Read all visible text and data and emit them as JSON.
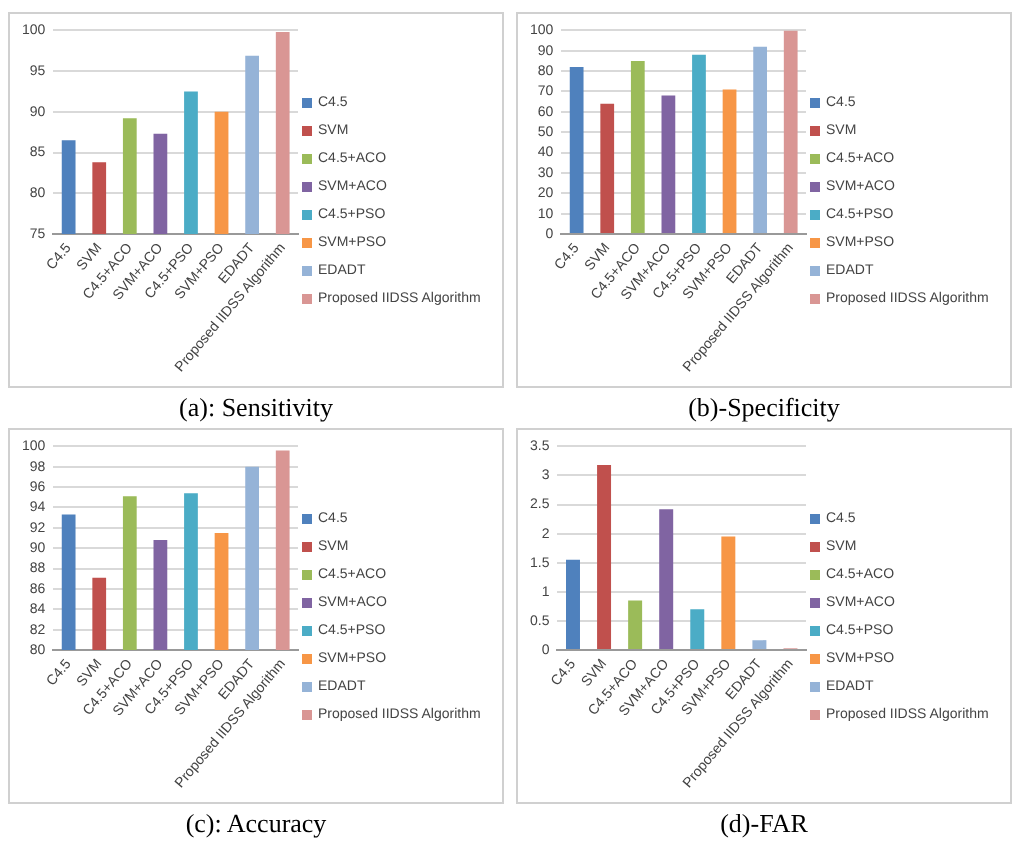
{
  "chart_data": [
    {
      "type": "bar",
      "title": "(a): Sensitivity",
      "categories": [
        "C4.5",
        "SVM",
        "C4.5+ACO",
        "SVM+ACO",
        "C4.5+PSO",
        "SVM+PSO",
        "EDADT",
        "Proposed IIDSS Algorithm"
      ],
      "series": [
        {
          "name": "C4.5",
          "color": "#4f81bd",
          "values": [
            86.5,
            null,
            null,
            null,
            null,
            null,
            null,
            null
          ]
        },
        {
          "name": "SVM",
          "color": "#c0504d",
          "values": [
            null,
            83.8,
            null,
            null,
            null,
            null,
            null,
            null
          ]
        },
        {
          "name": "C4.5+ACO",
          "color": "#9bbb59",
          "values": [
            null,
            null,
            89.2,
            null,
            null,
            null,
            null,
            null
          ]
        },
        {
          "name": "SVM+ACO",
          "color": "#8064a2",
          "values": [
            null,
            null,
            null,
            87.3,
            null,
            null,
            null,
            null
          ]
        },
        {
          "name": "C4.5+PSO",
          "color": "#4bacc6",
          "values": [
            null,
            null,
            null,
            null,
            92.5,
            null,
            null,
            null
          ]
        },
        {
          "name": "SVM+PSO",
          "color": "#f79646",
          "values": [
            null,
            null,
            null,
            null,
            null,
            90,
            null,
            null
          ]
        },
        {
          "name": "EDADT",
          "color": "#95b3d7",
          "values": [
            null,
            null,
            null,
            null,
            null,
            null,
            96.9,
            null
          ]
        },
        {
          "name": "Proposed IIDSS Algorithm",
          "color": "#d99694",
          "values": [
            null,
            null,
            null,
            null,
            null,
            null,
            null,
            99.8
          ]
        }
      ],
      "ylim": [
        75,
        100
      ],
      "yticks": [
        75,
        80,
        85,
        90,
        95,
        100
      ],
      "grid": "y",
      "legend": "right"
    },
    {
      "type": "bar",
      "title": "(b)-Specificity",
      "categories": [
        "C4.5",
        "SVM",
        "C4.5+ACO",
        "SVM+ACO",
        "C4.5+PSO",
        "SVM+PSO",
        "EDADT",
        "Proposed IIDSS Algorithm"
      ],
      "series": [
        {
          "name": "C4.5",
          "color": "#4f81bd",
          "values": [
            82,
            null,
            null,
            null,
            null,
            null,
            null,
            null
          ]
        },
        {
          "name": "SVM",
          "color": "#c0504d",
          "values": [
            null,
            64,
            null,
            null,
            null,
            null,
            null,
            null
          ]
        },
        {
          "name": "C4.5+ACO",
          "color": "#9bbb59",
          "values": [
            null,
            null,
            85,
            null,
            null,
            null,
            null,
            null
          ]
        },
        {
          "name": "SVM+ACO",
          "color": "#8064a2",
          "values": [
            null,
            null,
            null,
            68,
            null,
            null,
            null,
            null
          ]
        },
        {
          "name": "C4.5+PSO",
          "color": "#4bacc6",
          "values": [
            null,
            null,
            null,
            null,
            88,
            null,
            null,
            null
          ]
        },
        {
          "name": "SVM+PSO",
          "color": "#f79646",
          "values": [
            null,
            null,
            null,
            null,
            null,
            71,
            null,
            null
          ]
        },
        {
          "name": "EDADT",
          "color": "#95b3d7",
          "values": [
            null,
            null,
            null,
            null,
            null,
            null,
            92,
            null
          ]
        },
        {
          "name": "Proposed IIDSS Algorithm",
          "color": "#d99694",
          "values": [
            null,
            null,
            null,
            null,
            null,
            null,
            null,
            100
          ]
        }
      ],
      "ylim": [
        0,
        100
      ],
      "yticks": [
        0,
        10,
        20,
        30,
        40,
        50,
        60,
        70,
        80,
        90,
        100
      ],
      "grid": "y",
      "legend": "right"
    },
    {
      "type": "bar",
      "title": "(c): Accuracy",
      "categories": [
        "C4.5",
        "SVM",
        "C4.5+ACO",
        "SVM+ACO",
        "C4.5+PSO",
        "SVM+PSO",
        "EDADT",
        "Proposed IIDSS Algorithm"
      ],
      "series": [
        {
          "name": "C4.5",
          "color": "#4f81bd",
          "values": [
            93.3,
            null,
            null,
            null,
            null,
            null,
            null,
            null
          ]
        },
        {
          "name": "SVM",
          "color": "#c0504d",
          "values": [
            null,
            87.1,
            null,
            null,
            null,
            null,
            null,
            null
          ]
        },
        {
          "name": "C4.5+ACO",
          "color": "#9bbb59",
          "values": [
            null,
            null,
            95.1,
            null,
            null,
            null,
            null,
            null
          ]
        },
        {
          "name": "SVM+ACO",
          "color": "#8064a2",
          "values": [
            null,
            null,
            null,
            90.8,
            null,
            null,
            null,
            null
          ]
        },
        {
          "name": "C4.5+PSO",
          "color": "#4bacc6",
          "values": [
            null,
            null,
            null,
            null,
            95.4,
            null,
            null,
            null
          ]
        },
        {
          "name": "SVM+PSO",
          "color": "#f79646",
          "values": [
            null,
            null,
            null,
            null,
            null,
            91.5,
            null,
            null
          ]
        },
        {
          "name": "EDADT",
          "color": "#95b3d7",
          "values": [
            null,
            null,
            null,
            null,
            null,
            null,
            98,
            null
          ]
        },
        {
          "name": "Proposed IIDSS Algorithm",
          "color": "#d99694",
          "values": [
            null,
            null,
            null,
            null,
            null,
            null,
            null,
            99.6
          ]
        }
      ],
      "ylim": [
        80,
        100
      ],
      "yticks": [
        80,
        82,
        84,
        86,
        88,
        90,
        92,
        94,
        96,
        98,
        100
      ],
      "grid": "y",
      "legend": "right"
    },
    {
      "type": "bar",
      "title": "(d)-FAR",
      "categories": [
        "C4.5",
        "SVM",
        "C4.5+ACO",
        "SVM+ACO",
        "C4.5+PSO",
        "SVM+PSO",
        "EDADT",
        "Proposed IIDSS Algorithm"
      ],
      "series": [
        {
          "name": "C4.5",
          "color": "#4f81bd",
          "values": [
            1.55,
            null,
            null,
            null,
            null,
            null,
            null,
            null
          ]
        },
        {
          "name": "SVM",
          "color": "#c0504d",
          "values": [
            null,
            3.18,
            null,
            null,
            null,
            null,
            null,
            null
          ]
        },
        {
          "name": "C4.5+ACO",
          "color": "#9bbb59",
          "values": [
            null,
            null,
            0.85,
            null,
            null,
            null,
            null,
            null
          ]
        },
        {
          "name": "SVM+ACO",
          "color": "#8064a2",
          "values": [
            null,
            null,
            null,
            2.42,
            null,
            null,
            null,
            null
          ]
        },
        {
          "name": "C4.5+PSO",
          "color": "#4bacc6",
          "values": [
            null,
            null,
            null,
            null,
            0.7,
            null,
            null,
            null
          ]
        },
        {
          "name": "SVM+PSO",
          "color": "#f79646",
          "values": [
            null,
            null,
            null,
            null,
            null,
            1.95,
            null,
            null
          ]
        },
        {
          "name": "EDADT",
          "color": "#95b3d7",
          "values": [
            null,
            null,
            null,
            null,
            null,
            null,
            0.17,
            null
          ]
        },
        {
          "name": "Proposed IIDSS Algorithm",
          "color": "#d99694",
          "values": [
            null,
            null,
            null,
            null,
            null,
            null,
            null,
            0.03
          ]
        }
      ],
      "ylim": [
        0,
        3.5
      ],
      "yticks": [
        0,
        0.5,
        1,
        1.5,
        2,
        2.5,
        3,
        3.5
      ],
      "grid": "y",
      "legend": "right"
    }
  ]
}
